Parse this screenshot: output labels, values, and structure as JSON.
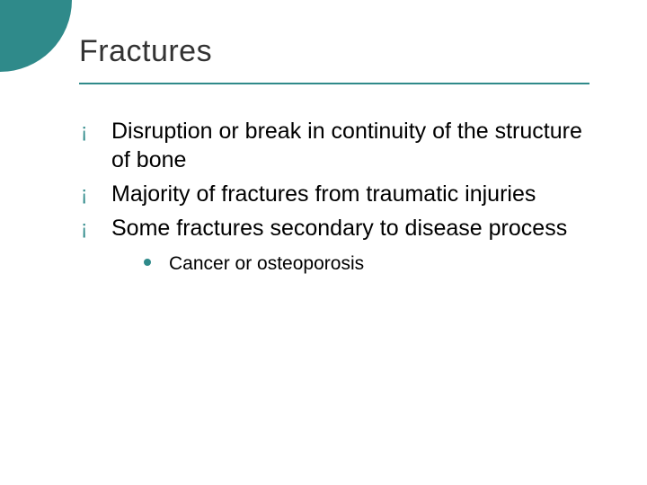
{
  "slide": {
    "title": "Fractures",
    "title_fontsize": 34,
    "title_color": "#333333",
    "rule_color": "#2f8a8a",
    "corner_circle_color": "#2f8a8a",
    "background_color": "#ffffff",
    "body_fontsize": 25,
    "sub_fontsize": 21,
    "bullet1_glyph": "¡",
    "bullet1_color": "#2f8a8a",
    "bullet2_color": "#2f8a8a",
    "bullets": [
      {
        "text": "Disruption or break in continuity of the structure of bone"
      },
      {
        "text": "Majority of fractures from traumatic injuries"
      },
      {
        "text": "Some fractures secondary to disease process",
        "sub": [
          {
            "text": "Cancer or osteoporosis"
          }
        ]
      }
    ]
  }
}
